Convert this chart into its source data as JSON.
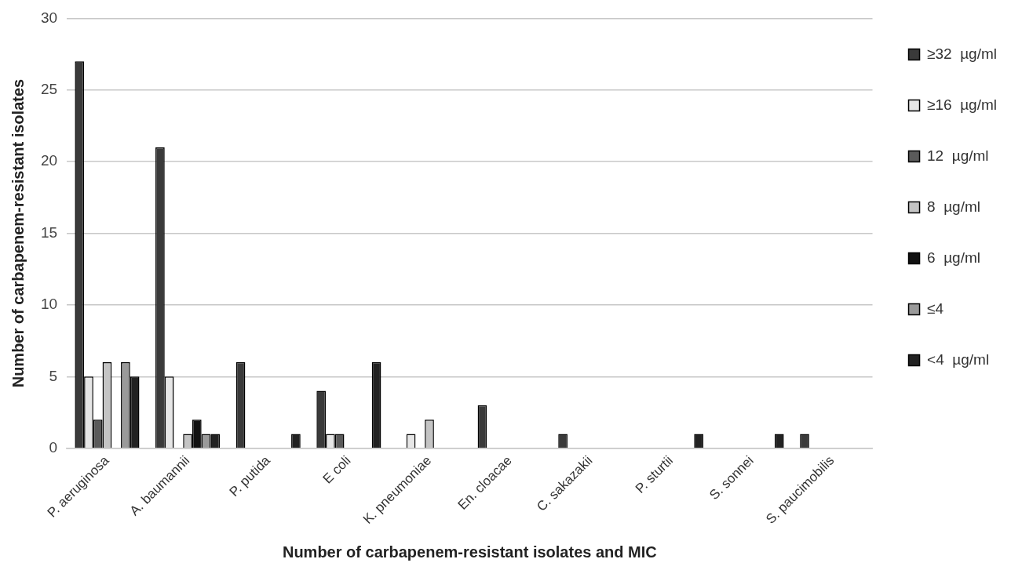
{
  "chart_data": {
    "type": "bar",
    "xlabel": "Number of carbapenem-resistant isolates and MIC",
    "ylabel": "Number of carbapenem-resistant isolates",
    "categories": [
      "P. aeruginosa",
      "A. baumannii",
      "P. putida",
      "E coli",
      "K. pneumoniae",
      "En. cloacae",
      "C. sakazakii",
      "P. sturtii",
      "S. sonnei",
      "S. paucimobilis"
    ],
    "series": [
      {
        "name": "≥32  µg/ml",
        "color": "#3a3a3a",
        "values": [
          27,
          21,
          6,
          4,
          0,
          3,
          1,
          0,
          0,
          1
        ]
      },
      {
        "name": "≥16  µg/ml",
        "color": "#e6e6e6",
        "values": [
          5,
          5,
          0,
          1,
          1,
          0,
          0,
          0,
          0,
          0
        ]
      },
      {
        "name": "12  µg/ml",
        "color": "#5a5a5a",
        "values": [
          2,
          0,
          0,
          1,
          0,
          0,
          0,
          0,
          0,
          0
        ]
      },
      {
        "name": "8  µg/ml",
        "color": "#c4c4c4",
        "values": [
          6,
          1,
          0,
          0,
          2,
          0,
          0,
          0,
          0,
          0
        ]
      },
      {
        "name": "6  µg/ml",
        "color": "#111111",
        "values": [
          0,
          2,
          0,
          0,
          0,
          0,
          0,
          0,
          0,
          0
        ]
      },
      {
        "name": "≤4",
        "color": "#9a9a9a",
        "values": [
          6,
          1,
          0,
          0,
          0,
          0,
          0,
          0,
          0,
          0
        ]
      },
      {
        "name": "<4  µg/ml",
        "color": "#222222",
        "values": [
          5,
          1,
          1,
          6,
          0,
          0,
          0,
          1,
          1,
          0
        ]
      }
    ],
    "ylim": [
      0,
      30
    ],
    "yticks": [
      0,
      5,
      10,
      15,
      20,
      25,
      30
    ],
    "grid": "y",
    "legend": "right"
  }
}
